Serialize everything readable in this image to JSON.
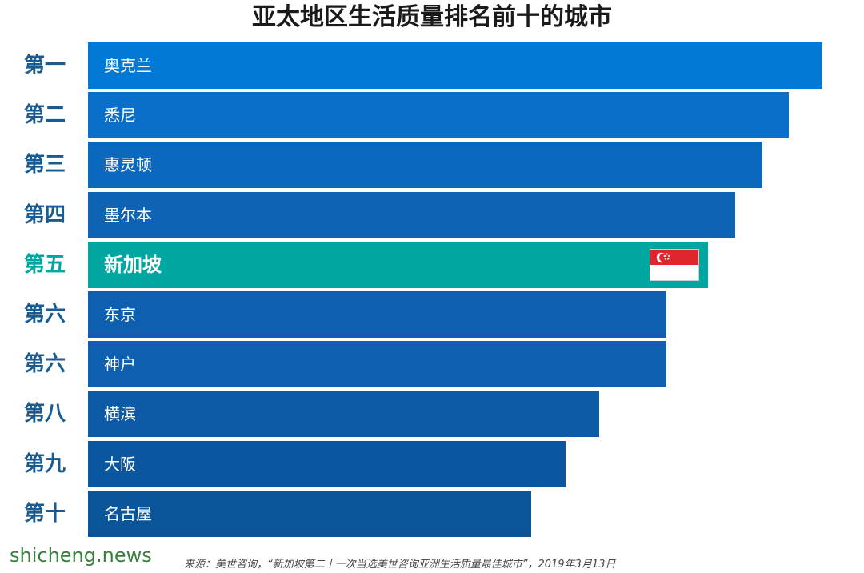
{
  "chart_data": {
    "type": "bar",
    "orientation": "horizontal",
    "title": "亚太地区生活质量排名前十的城市",
    "rank_labels": [
      "第一",
      "第二",
      "第三",
      "第四",
      "第五",
      "第六",
      "第六",
      "第八",
      "第九",
      "第十"
    ],
    "categories": [
      "奥克兰",
      "悉尼",
      "惠灵顿",
      "墨尔本",
      "新加坡",
      "东京",
      "神户",
      "横滨",
      "大阪",
      "名古屋"
    ],
    "values": [
      10,
      9.54,
      9.18,
      8.81,
      8.44,
      7.88,
      7.88,
      6.96,
      6.5,
      6.04
    ],
    "highlight_index": 4,
    "colors": {
      "bars": [
        "#0078d4",
        "#0a6fc9",
        "#0c68be",
        "#0e63b5",
        "#00a6a0",
        "#0e5faf",
        "#0e5faf",
        "#0c5aa6",
        "#0b579f",
        "#0a5499"
      ],
      "highlight_rank_text": "#00a6a0",
      "rank_text": "#1a5c92"
    },
    "highlight_icon": "singapore-flag-icon",
    "source": "来源：美世咨询，“新加坡第二十一次当选美世咨询亚洲生活质量最佳城市”，2019年3月13日",
    "watermark": "shicheng.news"
  }
}
